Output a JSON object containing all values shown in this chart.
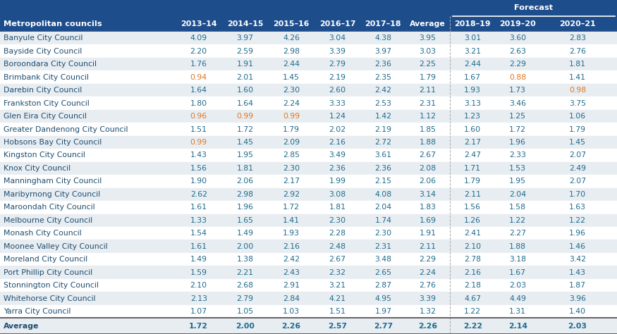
{
  "col_headers": [
    "Metropolitan councils",
    "2013–14",
    "2014–15",
    "2015–16",
    "2016–17",
    "2017–18",
    "Average",
    "2018–19",
    "2019–20",
    "2020–21"
  ],
  "forecast_label": "Forecast",
  "rows": [
    {
      "name": "Banyule City Council",
      "values": [
        4.09,
        3.97,
        4.26,
        3.04,
        4.38,
        3.95,
        3.01,
        3.6,
        2.83
      ],
      "orange": []
    },
    {
      "name": "Bayside City Council",
      "values": [
        2.2,
        2.59,
        2.98,
        3.39,
        3.97,
        3.03,
        3.21,
        2.63,
        2.76
      ],
      "orange": []
    },
    {
      "name": "Boroondara City Council",
      "values": [
        1.76,
        1.91,
        2.44,
        2.79,
        2.36,
        2.25,
        2.44,
        2.29,
        1.81
      ],
      "orange": []
    },
    {
      "name": "Brimbank City Council",
      "values": [
        0.94,
        2.01,
        1.45,
        2.19,
        2.35,
        1.79,
        1.67,
        0.88,
        1.41
      ],
      "orange": [
        1,
        8
      ]
    },
    {
      "name": "Darebin City Council",
      "values": [
        1.64,
        1.6,
        2.3,
        2.6,
        2.42,
        2.11,
        1.93,
        1.73,
        0.98
      ],
      "orange": [
        9
      ]
    },
    {
      "name": "Frankston City Council",
      "values": [
        1.8,
        1.64,
        2.24,
        3.33,
        2.53,
        2.31,
        3.13,
        3.46,
        3.75
      ],
      "orange": []
    },
    {
      "name": "Glen Eira City Council",
      "values": [
        0.96,
        0.99,
        0.99,
        1.24,
        1.42,
        1.12,
        1.23,
        1.25,
        1.06
      ],
      "orange": [
        1,
        2,
        3
      ]
    },
    {
      "name": "Greater Dandenong City Council",
      "values": [
        1.51,
        1.72,
        1.79,
        2.02,
        2.19,
        1.85,
        1.6,
        1.72,
        1.79
      ],
      "orange": []
    },
    {
      "name": "Hobsons Bay City Council",
      "values": [
        0.99,
        1.45,
        2.09,
        2.16,
        2.72,
        1.88,
        2.17,
        1.96,
        1.45
      ],
      "orange": [
        1
      ]
    },
    {
      "name": "Kingston City Council",
      "values": [
        1.43,
        1.95,
        2.85,
        3.49,
        3.61,
        2.67,
        2.47,
        2.33,
        2.07
      ],
      "orange": []
    },
    {
      "name": "Knox City Council",
      "values": [
        1.56,
        1.81,
        2.3,
        2.36,
        2.36,
        2.08,
        1.71,
        1.53,
        2.49
      ],
      "orange": []
    },
    {
      "name": "Manningham City Council",
      "values": [
        1.9,
        2.06,
        2.17,
        1.99,
        2.15,
        2.06,
        1.79,
        1.95,
        2.07
      ],
      "orange": []
    },
    {
      "name": "Maribyrnong City Council",
      "values": [
        2.62,
        2.98,
        2.92,
        3.08,
        4.08,
        3.14,
        2.11,
        2.04,
        1.7
      ],
      "orange": []
    },
    {
      "name": "Maroondah City Council",
      "values": [
        1.61,
        1.96,
        1.72,
        1.81,
        2.04,
        1.83,
        1.56,
        1.58,
        1.63
      ],
      "orange": []
    },
    {
      "name": "Melbourne City Council",
      "values": [
        1.33,
        1.65,
        1.41,
        2.3,
        1.74,
        1.69,
        1.26,
        1.22,
        1.22
      ],
      "orange": []
    },
    {
      "name": "Monash City Council",
      "values": [
        1.54,
        1.49,
        1.93,
        2.28,
        2.3,
        1.91,
        2.41,
        2.27,
        1.96
      ],
      "orange": []
    },
    {
      "name": "Moonee Valley City Council",
      "values": [
        1.61,
        2.0,
        2.16,
        2.48,
        2.31,
        2.11,
        2.1,
        1.88,
        1.46
      ],
      "orange": []
    },
    {
      "name": "Moreland City Council",
      "values": [
        1.49,
        1.38,
        2.42,
        2.67,
        3.48,
        2.29,
        2.78,
        3.18,
        3.42
      ],
      "orange": []
    },
    {
      "name": "Port Phillip City Council",
      "values": [
        1.59,
        2.21,
        2.43,
        2.32,
        2.65,
        2.24,
        2.16,
        1.67,
        1.43
      ],
      "orange": []
    },
    {
      "name": "Stonnington City Council",
      "values": [
        2.1,
        2.68,
        2.91,
        3.21,
        2.87,
        2.76,
        2.18,
        2.03,
        1.87
      ],
      "orange": []
    },
    {
      "name": "Whitehorse City Council",
      "values": [
        2.13,
        2.79,
        2.84,
        4.21,
        4.95,
        3.39,
        4.67,
        4.49,
        3.96
      ],
      "orange": []
    },
    {
      "name": "Yarra City Council",
      "values": [
        1.07,
        1.05,
        1.03,
        1.51,
        1.97,
        1.32,
        1.22,
        1.31,
        1.4
      ],
      "orange": []
    }
  ],
  "average_row": {
    "name": "Average",
    "values": [
      1.72,
      2.0,
      2.26,
      2.57,
      2.77,
      2.26,
      2.22,
      2.14,
      2.03
    ]
  },
  "header_bg": "#1e4d8c",
  "data_text_color": "#1e6b8c",
  "name_text_color": "#1e4d6e",
  "orange_color": "#e07820",
  "bg_color": "#e8edf2",
  "row_color_odd": "#e8edf2",
  "row_color_even": "#ffffff",
  "header_font_size": 8.2,
  "data_font_size": 7.8,
  "name_font_size": 7.8
}
